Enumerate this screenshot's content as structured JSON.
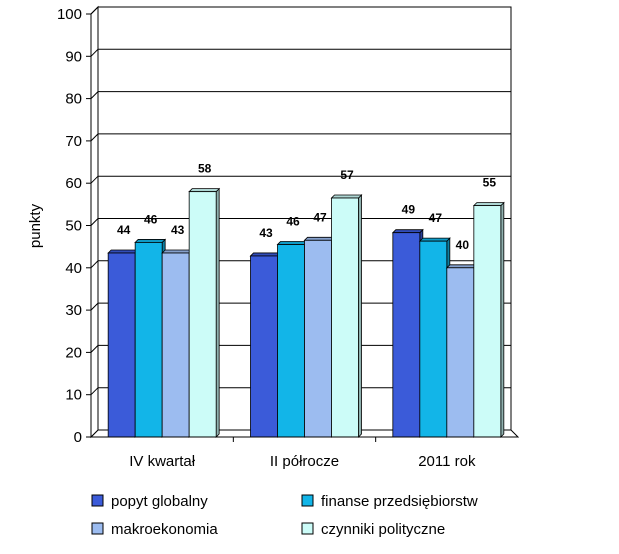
{
  "chart_data": {
    "type": "bar",
    "title": "",
    "xlabel": "",
    "ylabel": "punkty",
    "ylim": [
      0,
      100
    ],
    "yticks": [
      0,
      10,
      20,
      30,
      40,
      50,
      60,
      70,
      80,
      90,
      100
    ],
    "grid": true,
    "legend": "bottom",
    "categories": [
      "IV kwartał",
      "II półrocze",
      "2011 rok"
    ],
    "series": [
      {
        "name": "popyt globalny",
        "values": [
          44,
          43,
          49
        ],
        "color": "#3b5bd9"
      },
      {
        "name": "finanse przedsiębiorstw",
        "values": [
          46,
          46,
          47
        ],
        "color": "#12b5e8"
      },
      {
        "name": "makroekonomia",
        "values": [
          43,
          47,
          40
        ],
        "color": "#9cbcf0"
      },
      {
        "name": "czynniki polityczne",
        "values": [
          58,
          57,
          55
        ],
        "color": "#ccfcf8"
      }
    ],
    "bar_heights_rendered": [
      [
        43.5,
        42.8,
        48.3
      ],
      [
        46,
        45.5,
        46.3
      ],
      [
        43.5,
        46.5,
        40
      ],
      [
        58,
        56.5,
        54.7
      ]
    ]
  }
}
